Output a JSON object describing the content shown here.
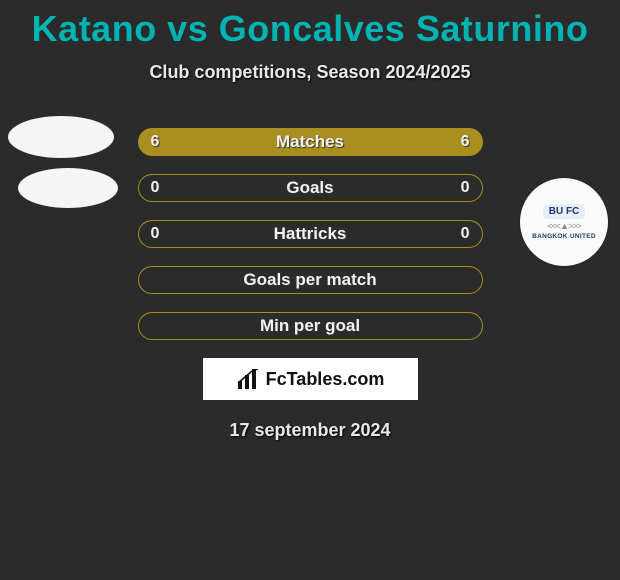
{
  "page": {
    "title": "Katano vs Goncalves Saturnino",
    "subtitle": "Club competitions, Season 2024/2025",
    "date": "17 september 2024",
    "background_color": "#2b2b2b",
    "accent_color": "#00b3b3",
    "bar_color": "#a88f1f",
    "text_color": "#e8e8e8"
  },
  "stats": {
    "rows": [
      {
        "label": "Matches",
        "left": "6",
        "right": "6",
        "left_fill_pct": 50,
        "right_fill_pct": 50,
        "style": "split"
      },
      {
        "label": "Goals",
        "left": "0",
        "right": "0",
        "left_fill_pct": 0,
        "right_fill_pct": 0,
        "style": "empty-border"
      },
      {
        "label": "Hattricks",
        "left": "0",
        "right": "0",
        "left_fill_pct": 0,
        "right_fill_pct": 0,
        "style": "empty-border"
      },
      {
        "label": "Goals per match",
        "left": "",
        "right": "",
        "left_fill_pct": 0,
        "right_fill_pct": 0,
        "style": "empty-border"
      },
      {
        "label": "Min per goal",
        "left": "",
        "right": "",
        "left_fill_pct": 0,
        "right_fill_pct": 0,
        "style": "empty-border"
      }
    ]
  },
  "brand": {
    "text": "FcTables.com"
  },
  "club": {
    "shield": "BU FC",
    "name": "BANGKOK UNITED"
  },
  "avatars": {
    "left_player_1": "player-avatar-1",
    "left_player_2": "player-avatar-2",
    "right_club": "bangkok-united"
  }
}
